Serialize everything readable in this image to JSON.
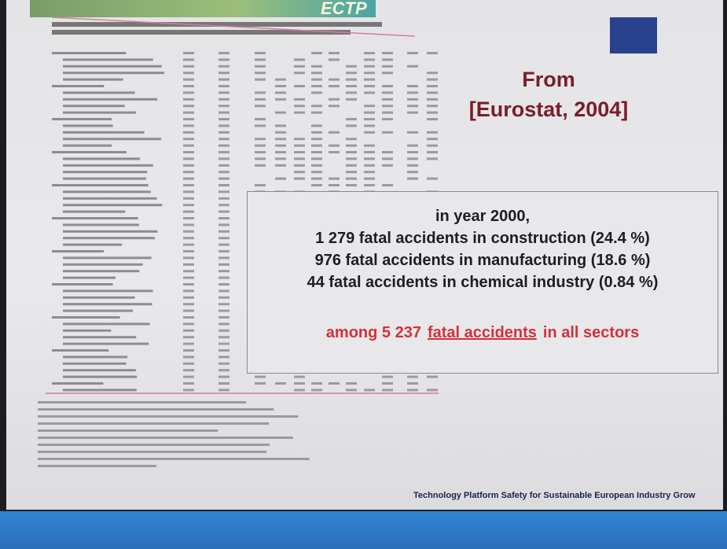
{
  "header": {
    "logo": "ECTP"
  },
  "source": {
    "prefix": "From",
    "citation": "[Eurostat, 2004]"
  },
  "highlight": {
    "lines": [
      "in year 2000,",
      "1 279 fatal accidents in construction (24.4 %)",
      "976 fatal accidents in manufacturing (18.6 %)",
      "44 fatal accidents in chemical industry (0.84 %)"
    ],
    "summary": {
      "before": "among 5 237",
      "link": "fatal accidents",
      "after": "in all sectors"
    }
  },
  "footer": {
    "text": "Technology Platform Safety  for Sustainable European Industry Grow"
  }
}
